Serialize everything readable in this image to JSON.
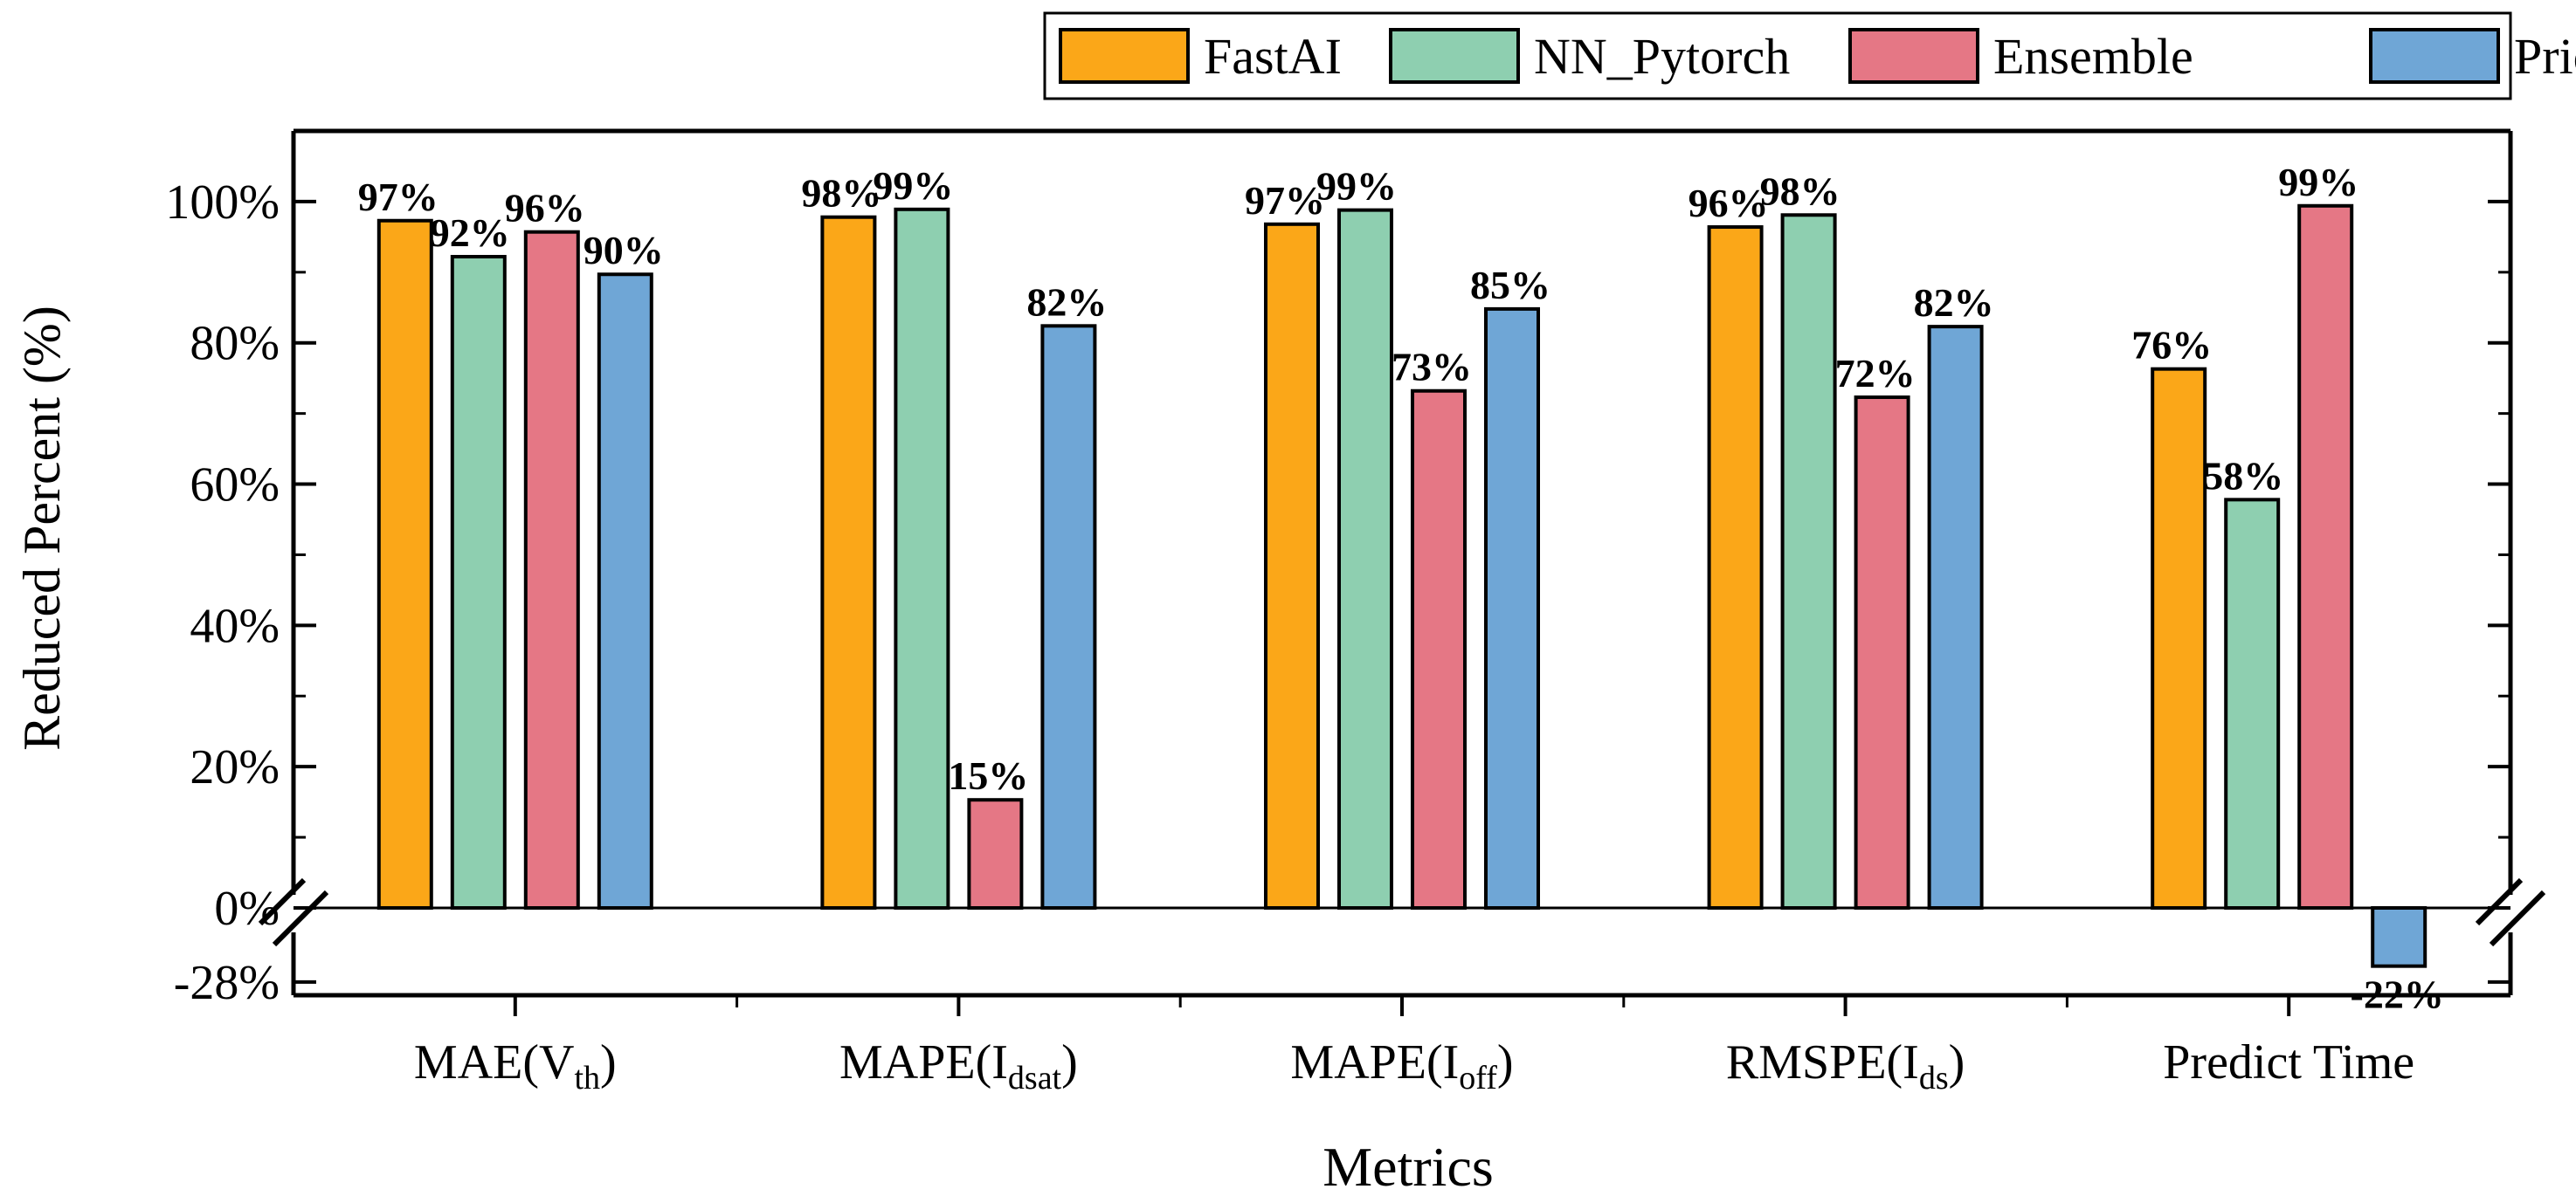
{
  "chart_data": {
    "type": "bar",
    "title": "",
    "xlabel": "Metrics",
    "ylabel": "Reduced Percent (%)",
    "categories": [
      {
        "main": "MAE(V",
        "sub": "th",
        "tail": ")"
      },
      {
        "main": "MAPE(I",
        "sub": "dsat",
        "tail": ")"
      },
      {
        "main": "MAPE(I",
        "sub": "off",
        "tail": ")"
      },
      {
        "main": "RMSPE(I",
        "sub": "ds",
        "tail": ")"
      },
      {
        "main": "Predict Time",
        "sub": "",
        "tail": ""
      }
    ],
    "series": [
      {
        "name": "FastAI",
        "color": "#FBA718",
        "values": [
          97.3,
          97.8,
          96.8,
          96.4,
          76.3
        ],
        "labels": [
          "97%",
          "98%",
          "97%",
          "96%",
          "76%"
        ]
      },
      {
        "name": "NN_Pytorch",
        "color": "#8ECFB0",
        "values": [
          92.2,
          98.9,
          98.8,
          98.1,
          57.8
        ],
        "labels": [
          "92%",
          "99%",
          "99%",
          "98%",
          "58%"
        ]
      },
      {
        "name": "Ensemble",
        "color": "#E57785",
        "values": [
          95.7,
          15.3,
          73.2,
          72.3,
          99.4
        ],
        "labels": [
          "96%",
          "15%",
          "73%",
          "72%",
          "99%"
        ]
      },
      {
        "name": "Prior",
        "color": "#6FA6D6",
        "values": [
          89.7,
          82.4,
          84.8,
          82.3,
          -22
        ],
        "labels": [
          "90%",
          "82%",
          "85%",
          "82%",
          "-22%"
        ]
      }
    ],
    "y_ticks": [
      0,
      20,
      40,
      60,
      80,
      100
    ],
    "y_tick_labels": [
      "0%",
      "20%",
      "40%",
      "60%",
      "80%",
      "100%"
    ],
    "y_break_tick": -28,
    "y_break_tick_label": "-28%",
    "ylim_upper": [
      0,
      110
    ],
    "ylim_lower": [
      -33,
      0
    ],
    "axis_break": true,
    "legend_position": "top-right",
    "grid": false
  }
}
